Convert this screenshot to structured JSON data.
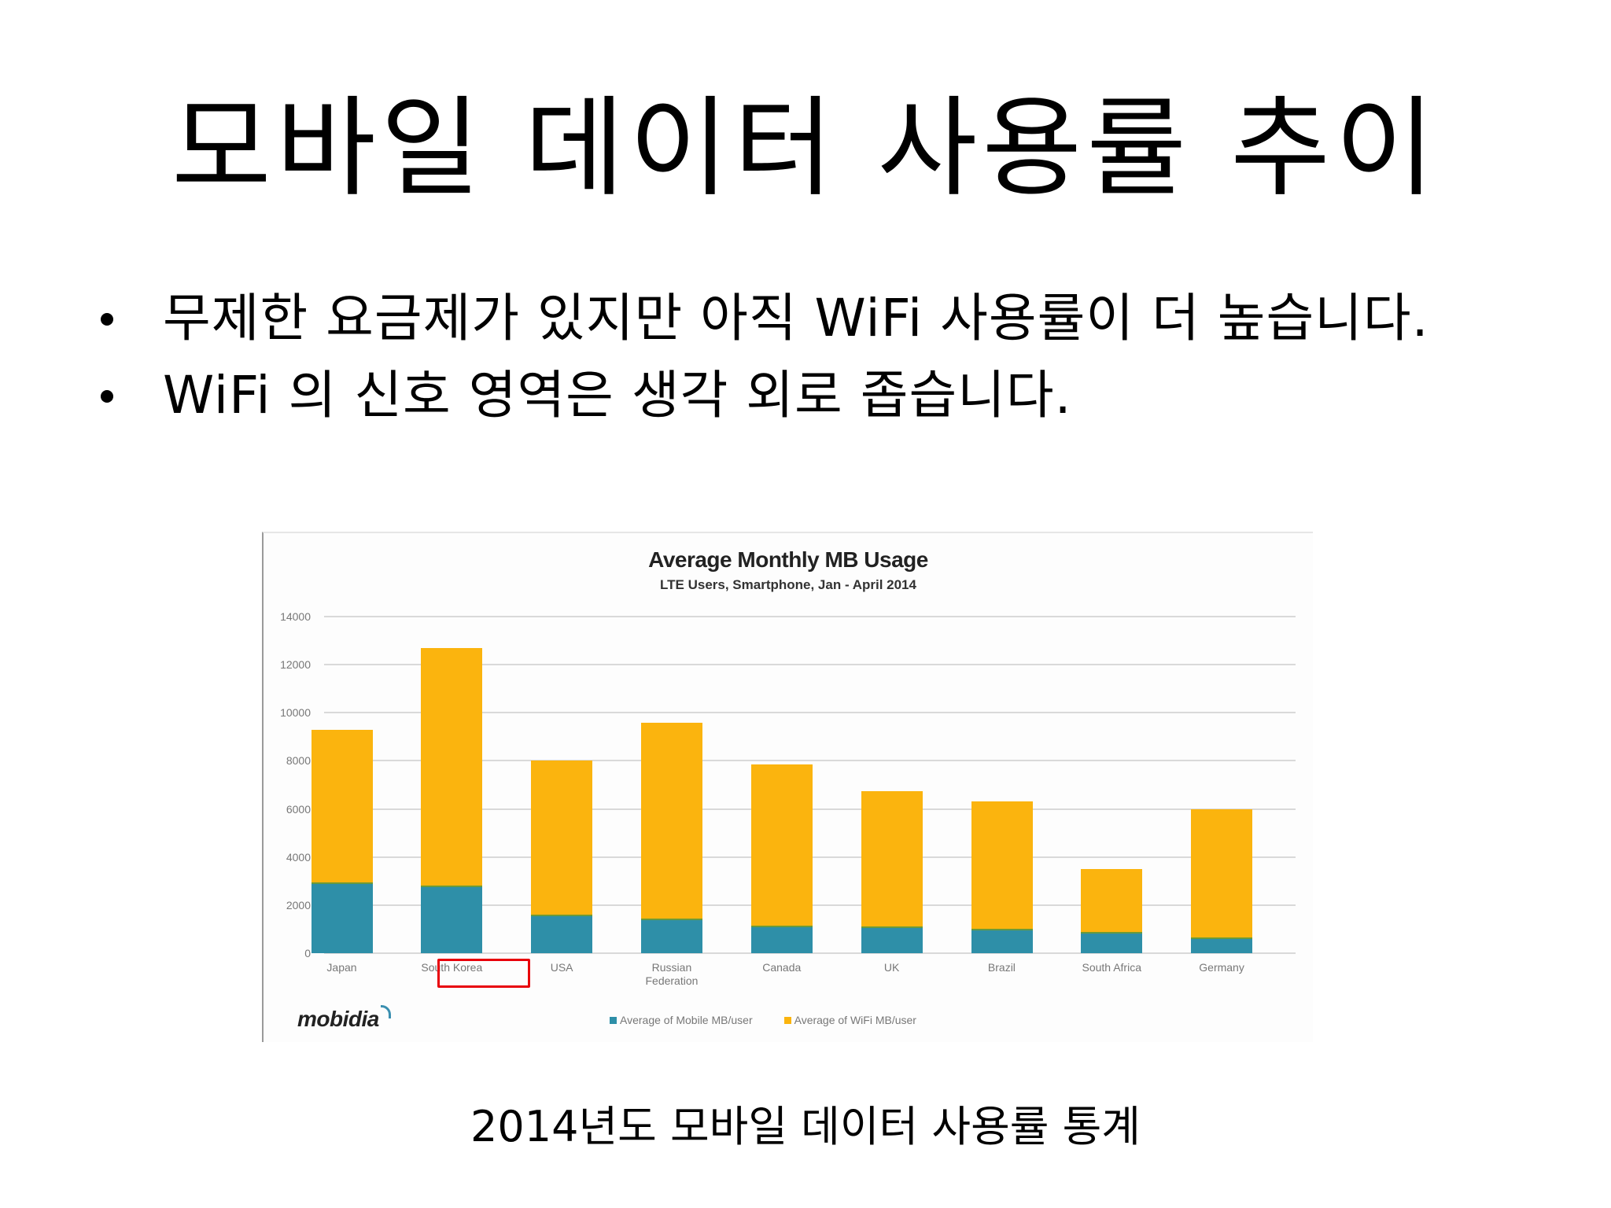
{
  "slide": {
    "title": "모바일 데이터 사용률 추이",
    "bullets": [
      "무제한 요금제가 있지만 아직 WiFi 사용률이 더 높습니다.",
      "WiFi 의 신호 영역은 생각 외로 좁습니다."
    ],
    "caption": "2014년도 모바일 데이터 사용률 통계"
  },
  "figure": {
    "logo": "mobidia",
    "highlighted_category": "South Korea",
    "highlight_color": "#E8000A"
  },
  "chart_data": {
    "type": "bar",
    "stacked": true,
    "title": "Average Monthly MB Usage",
    "subtitle": "LTE Users, Smartphone, Jan - April 2014",
    "xlabel": "",
    "ylabel": "",
    "ylim": [
      0,
      14000
    ],
    "yticks": [
      "0",
      "2000",
      "4000",
      "6000",
      "8000",
      "10000",
      "12000",
      "14000"
    ],
    "grid": true,
    "legend_position": "bottom",
    "categories": [
      "Japan",
      "South Korea",
      "USA",
      "Russian Federation",
      "Canada",
      "UK",
      "Brazil",
      "South Africa",
      "Germany"
    ],
    "category_labels": [
      [
        "Japan"
      ],
      [
        "South Korea"
      ],
      [
        "USA"
      ],
      [
        "Russian",
        "Federation"
      ],
      [
        "Canada"
      ],
      [
        "UK"
      ],
      [
        "Brazil"
      ],
      [
        "South Africa"
      ],
      [
        "Germany"
      ]
    ],
    "series": [
      {
        "name": "Average of Mobile MB/user",
        "color": "#2E8FA8",
        "values": [
          2950,
          2800,
          1600,
          1450,
          1150,
          1100,
          1000,
          900,
          650
        ]
      },
      {
        "name": "Average of WiFi MB/user",
        "color": "#FBB40E",
        "values": [
          6350,
          9900,
          6400,
          8150,
          6700,
          5650,
          5300,
          2600,
          5350
        ]
      }
    ],
    "totals": [
      9300,
      12700,
      8000,
      9600,
      7850,
      6750,
      6300,
      3500,
      6000
    ]
  }
}
